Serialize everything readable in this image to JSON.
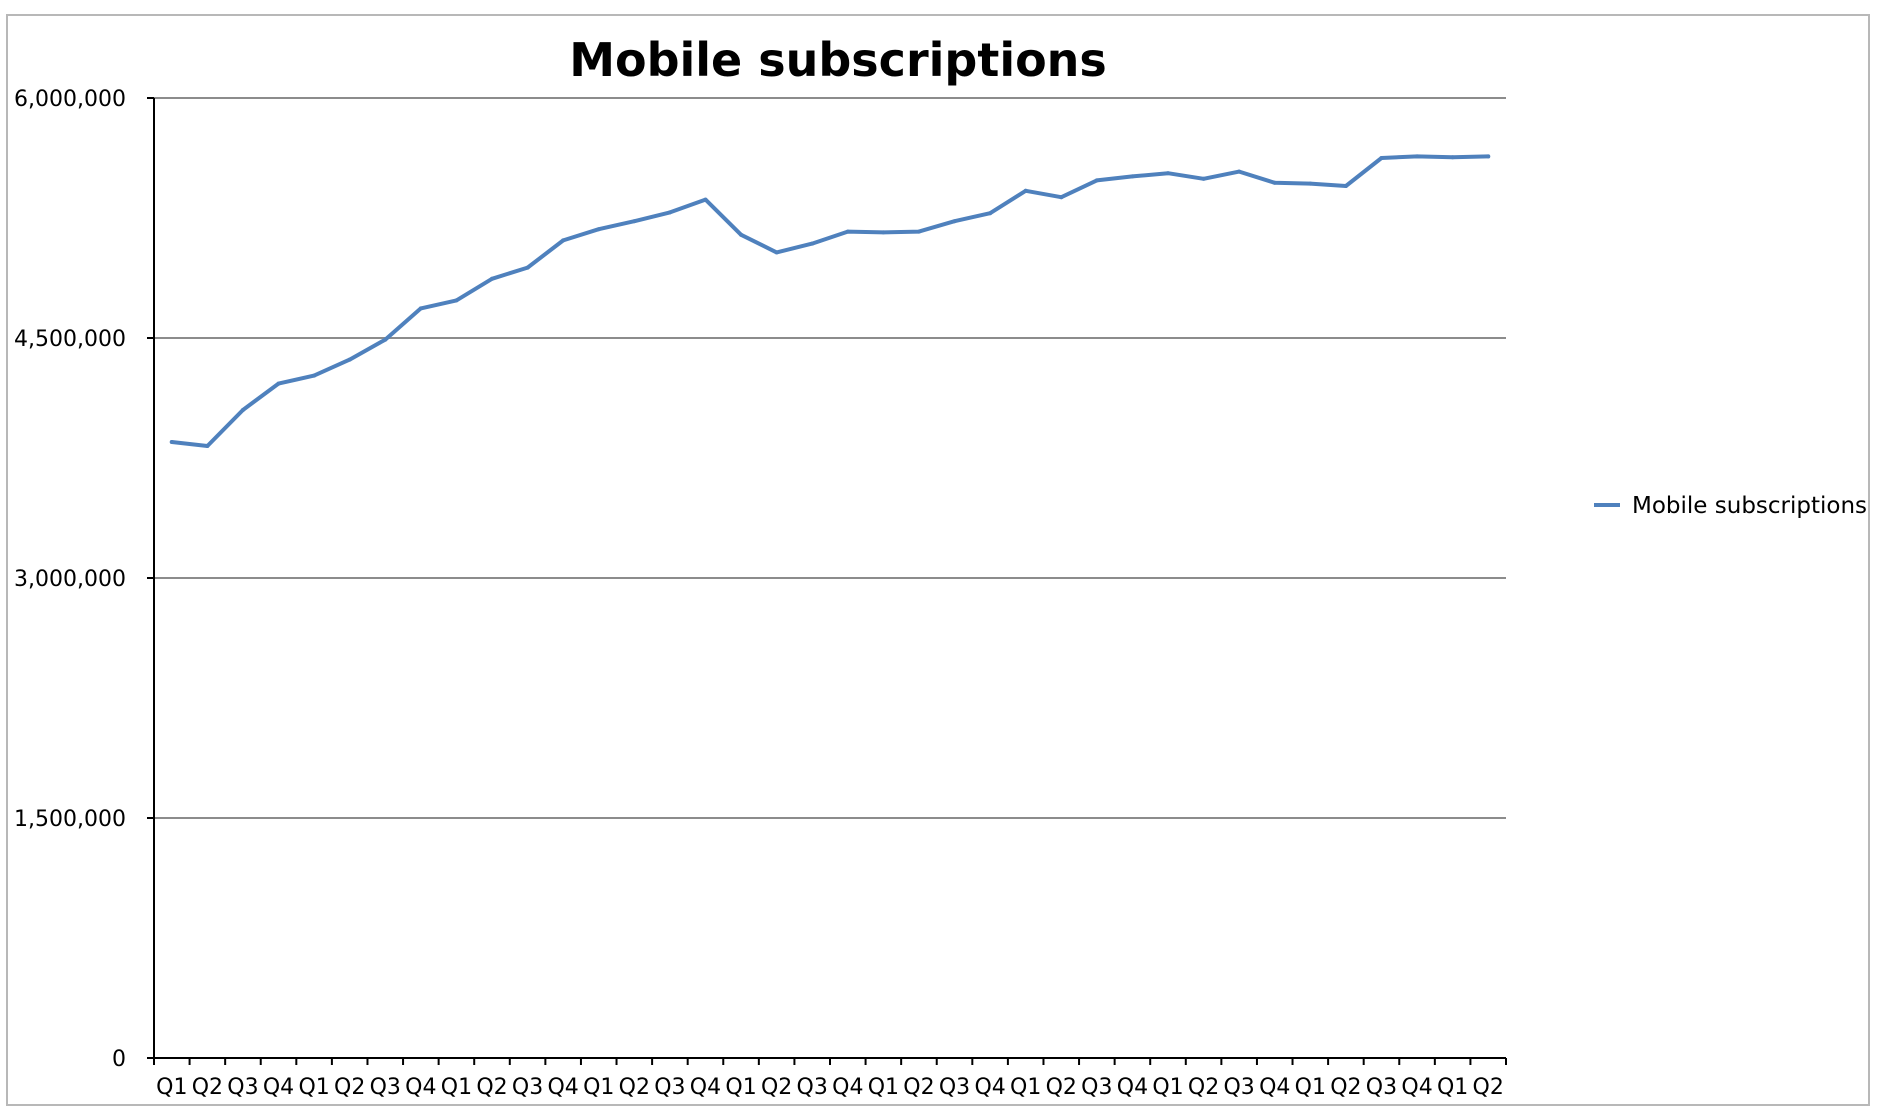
{
  "chart_data": {
    "type": "line",
    "title": "Mobile subscriptions",
    "xlabel": "",
    "ylabel": "",
    "ylim": [
      0,
      6000000
    ],
    "yticks": [
      "0",
      "1,500,000",
      "3,000,000",
      "4,500,000",
      "6,000,000"
    ],
    "ytick_values": [
      0,
      1500000,
      3000000,
      4500000,
      6000000
    ],
    "grid": "horizontal",
    "legend_position": "right",
    "categories": [
      "Q1",
      "Q2",
      "Q3",
      "Q4",
      "Q1",
      "Q2",
      "Q3",
      "Q4",
      "Q1",
      "Q2",
      "Q3",
      "Q4",
      "Q1",
      "Q2",
      "Q3",
      "Q4",
      "Q1",
      "Q2",
      "Q3",
      "Q4",
      "Q1",
      "Q2",
      "Q3",
      "Q4",
      "Q1",
      "Q2",
      "Q3",
      "Q4",
      "Q1",
      "Q2",
      "Q3",
      "Q4",
      "Q1",
      "Q2",
      "Q3",
      "Q4",
      "Q1",
      "Q2"
    ],
    "series": [
      {
        "name": "Mobile subscriptions",
        "color": "#4F81BD",
        "values": [
          3850000,
          3825000,
          4050000,
          4215000,
          4265000,
          4365000,
          4490000,
          4685000,
          4735000,
          4870000,
          4940000,
          5110000,
          5180000,
          5230000,
          5285000,
          5365000,
          5145000,
          5035000,
          5090000,
          5165000,
          5160000,
          5165000,
          5230000,
          5280000,
          5420000,
          5380000,
          5485000,
          5510000,
          5530000,
          5495000,
          5540000,
          5470000,
          5465000,
          5450000,
          5625000,
          5635000,
          5630000,
          5635000
        ]
      }
    ]
  }
}
